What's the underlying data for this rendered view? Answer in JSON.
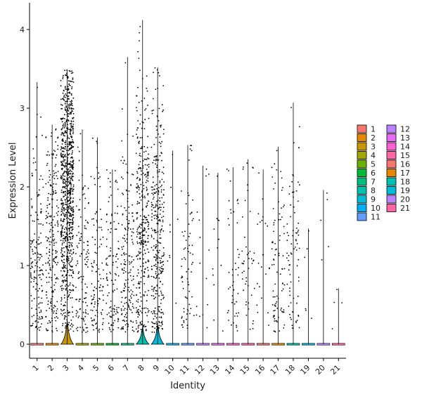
{
  "chart_data": {
    "type": "violin",
    "xlabel": "Identity",
    "ylabel": "Expression Level",
    "categories": [
      "1",
      "2",
      "3",
      "4",
      "5",
      "6",
      "7",
      "8",
      "9",
      "10",
      "11",
      "12",
      "13",
      "14",
      "15",
      "16",
      "17",
      "18",
      "19",
      "20",
      "21"
    ],
    "ylim": [
      -0.2,
      4.4
    ],
    "yticks": [
      0,
      1,
      2,
      3,
      4
    ],
    "colors": [
      "#F8766D",
      "#E58700",
      "#C99800",
      "#A3A500",
      "#6BB100",
      "#00BA38",
      "#00BF7D",
      "#00C0AF",
      "#00BCD8",
      "#00B0F6",
      "#619CFF",
      "#B983FF",
      "#E76BF3",
      "#FD61D1",
      "#FF67A4",
      "#F8766D",
      "#E58700",
      "#00C0AF",
      "#00BCD8",
      "#B983FF",
      "#FF67A4"
    ],
    "series": [
      {
        "name": "1",
        "max": 3.33,
        "bulge": 0,
        "density": 160,
        "spread": 1.3,
        "center": 1.1
      },
      {
        "name": "2",
        "max": 2.79,
        "bulge": 0,
        "density": 220,
        "spread": 1.5,
        "center": 1.2
      },
      {
        "name": "3",
        "max": 3.49,
        "bulge": 0.3,
        "density": 900,
        "spread": 1.5,
        "center": 1.9
      },
      {
        "name": "4",
        "max": 2.73,
        "bulge": 0,
        "density": 120,
        "spread": 1.3,
        "center": 0.9
      },
      {
        "name": "5",
        "max": 2.63,
        "bulge": 0,
        "density": 110,
        "spread": 1.3,
        "center": 0.9
      },
      {
        "name": "6",
        "max": 2.22,
        "bulge": 0,
        "density": 110,
        "spread": 1.2,
        "center": 0.9
      },
      {
        "name": "7",
        "max": 3.65,
        "bulge": 0,
        "density": 180,
        "spread": 1.4,
        "center": 0.9
      },
      {
        "name": "8",
        "max": 4.12,
        "bulge": 0.22,
        "density": 340,
        "spread": 1.6,
        "center": 1.5
      },
      {
        "name": "9",
        "max": 3.52,
        "bulge": 0.25,
        "density": 330,
        "spread": 1.6,
        "center": 1.4
      },
      {
        "name": "10",
        "max": 2.46,
        "bulge": 0,
        "density": 8,
        "spread": 1.2,
        "center": 1.0
      },
      {
        "name": "11",
        "max": 2.53,
        "bulge": 0,
        "density": 70,
        "spread": 1.2,
        "center": 0.9
      },
      {
        "name": "12",
        "max": 2.27,
        "bulge": 0,
        "density": 14,
        "spread": 1.2,
        "center": 1.0
      },
      {
        "name": "13",
        "max": 2.18,
        "bulge": 0,
        "density": 12,
        "spread": 1.2,
        "center": 1.0
      },
      {
        "name": "14",
        "max": 2.25,
        "bulge": 0,
        "density": 45,
        "spread": 1.2,
        "center": 1.0
      },
      {
        "name": "15",
        "max": 2.35,
        "bulge": 0,
        "density": 45,
        "spread": 1.2,
        "center": 1.0
      },
      {
        "name": "16",
        "max": 2.22,
        "bulge": 0,
        "density": 22,
        "spread": 1.2,
        "center": 1.0
      },
      {
        "name": "17",
        "max": 2.51,
        "bulge": 0,
        "density": 90,
        "spread": 1.2,
        "center": 0.9
      },
      {
        "name": "18",
        "max": 3.07,
        "bulge": 0,
        "density": 80,
        "spread": 1.3,
        "center": 1.3
      },
      {
        "name": "19",
        "max": 1.47,
        "bulge": 0,
        "density": 5,
        "spread": 1.0,
        "center": 0.8
      },
      {
        "name": "20",
        "max": 1.96,
        "bulge": 0,
        "density": 4,
        "spread": 1.0,
        "center": 1.0
      },
      {
        "name": "21",
        "max": 0.71,
        "bulge": 0,
        "density": 3,
        "spread": 0.4,
        "center": 0.4
      }
    ],
    "legend_position": "right",
    "grid": false
  }
}
